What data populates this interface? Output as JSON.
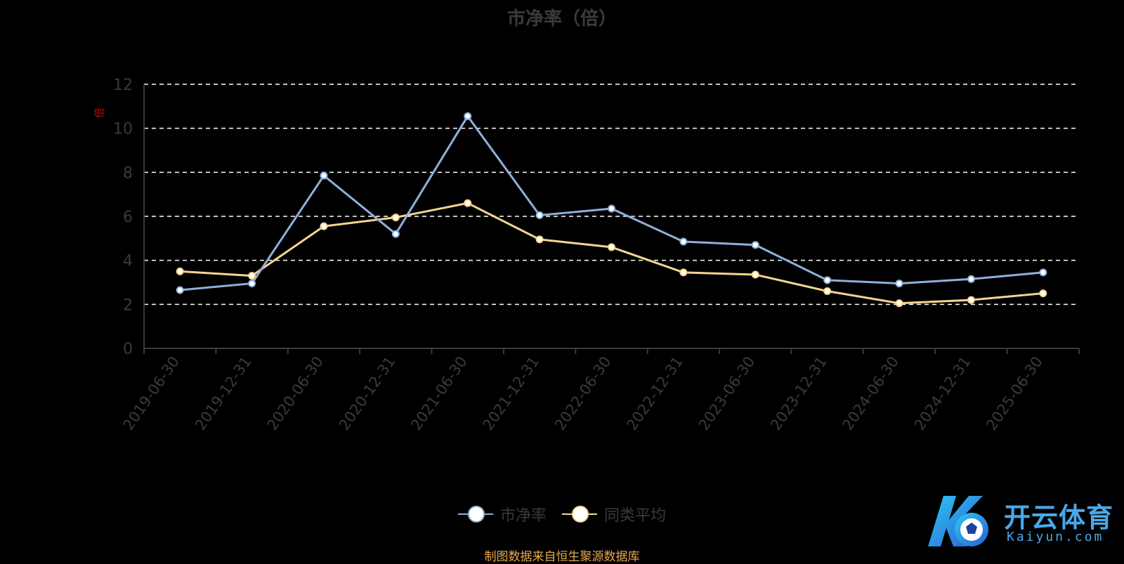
{
  "chart_data": {
    "type": "line",
    "title": "市净率（倍）",
    "ylabel": "倍",
    "xlabel": "",
    "categories": [
      "2019-06-30",
      "2019-12-31",
      "2020-06-30",
      "2020-12-31",
      "2021-06-30",
      "2021-12-31",
      "2022-06-30",
      "2022-12-31",
      "2023-06-30",
      "2023-12-31",
      "2024-06-30",
      "2024-12-31",
      "2025-06-30"
    ],
    "ylim": [
      0,
      12
    ],
    "yticks": [
      0,
      2,
      4,
      6,
      8,
      10,
      12
    ],
    "grid": true,
    "legend_position": "bottom",
    "series": [
      {
        "name": "市净率",
        "color": "#8fb0d8",
        "values": [
          2.65,
          2.95,
          7.85,
          5.2,
          10.55,
          6.05,
          6.35,
          4.85,
          4.7,
          3.1,
          2.95,
          3.15,
          3.45
        ]
      },
      {
        "name": "同类平均",
        "color": "#f5d58e",
        "values": [
          3.5,
          3.3,
          5.55,
          5.95,
          6.6,
          4.95,
          4.6,
          3.45,
          3.35,
          2.6,
          2.05,
          2.2,
          2.5
        ]
      }
    ]
  },
  "source_note": "制图数据来自恒生聚源数据库",
  "logo": {
    "name": "开云体育",
    "sub": "Kaiyun.com"
  },
  "colors": {
    "background": "#000000",
    "grid": "#ffffff",
    "axis": "#3a3a3a"
  }
}
